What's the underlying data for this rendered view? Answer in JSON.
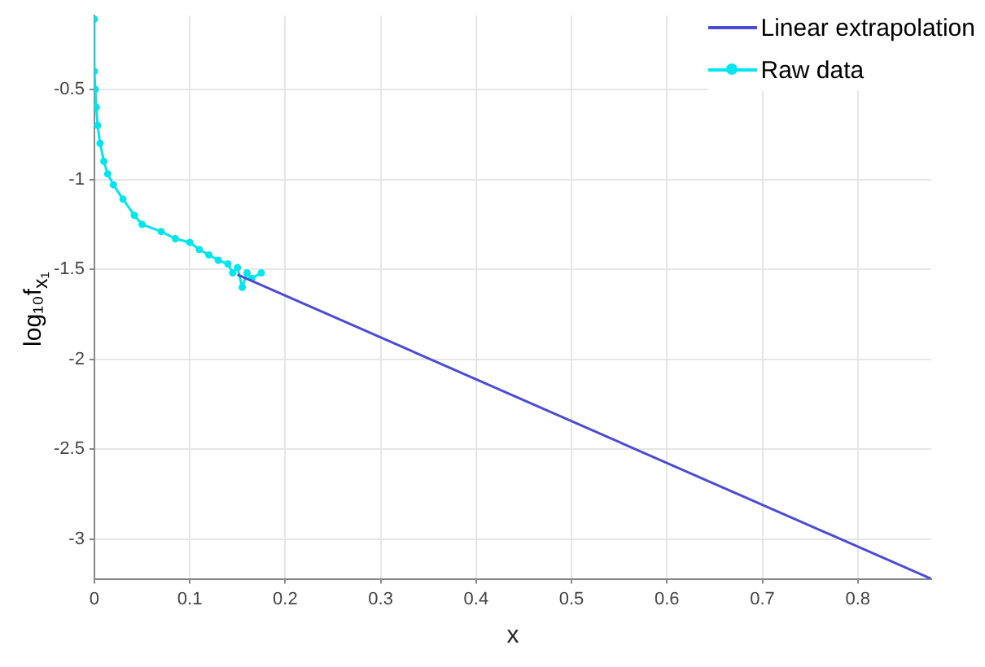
{
  "chart_data": {
    "type": "line",
    "xlabel": "x",
    "ylabel": "log₁₀f$_{x₁}$",
    "series": [
      {
        "name": "Linear extrapolation",
        "color": "#4b4bd6",
        "marker": "none",
        "x": [
          0.15,
          0.877
        ],
        "values": [
          -1.53,
          -3.22
        ]
      },
      {
        "name": "Raw data",
        "color": "#00e5ee",
        "marker": "circle",
        "x": [
          0,
          0,
          0.001,
          0.002,
          0.0035,
          0.006,
          0.01,
          0.014,
          0.02,
          0.03,
          0.042,
          0.05,
          0.07,
          0.085,
          0.1,
          0.11,
          0.12,
          0.13,
          0.14,
          0.145,
          0.15,
          0.155,
          0.16,
          0.165,
          0.175
        ],
        "values": [
          -0.11,
          -0.4,
          -0.5,
          -0.6,
          -0.7,
          -0.8,
          -0.9,
          -0.97,
          -1.03,
          -1.11,
          -1.2,
          -1.25,
          -1.29,
          -1.33,
          -1.35,
          -1.39,
          -1.42,
          -1.45,
          -1.47,
          -1.52,
          -1.49,
          -1.6,
          -1.52,
          -1.55,
          -1.52
        ]
      }
    ],
    "xlim": [
      0,
      0.877
    ],
    "xticks": [
      0,
      0.1,
      0.2,
      0.3,
      0.4,
      0.5,
      0.6,
      0.7,
      0.8
    ],
    "ylim": [
      -3.22,
      -0.09
    ],
    "yticks": [
      -3,
      -2.5,
      -2,
      -1.5,
      -1,
      -0.5
    ],
    "grid": true,
    "legend": "top right"
  }
}
